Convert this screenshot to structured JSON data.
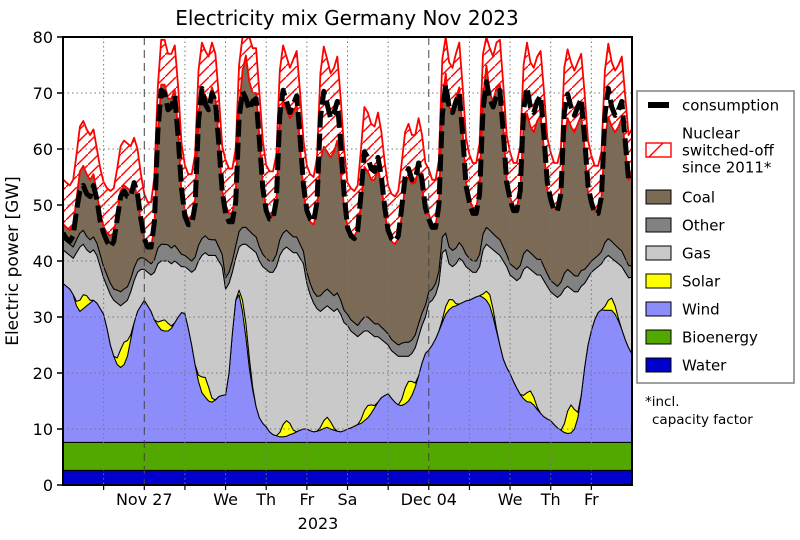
{
  "title": "Electricity mix Germany Nov 2023",
  "ylabel": "Electric power [GW]",
  "year_label": "2023",
  "footnote": {
    "line1": "*incl.",
    "line2": "capacity factor"
  },
  "axes": {
    "y_ticks": [
      0,
      10,
      20,
      30,
      40,
      50,
      60,
      70,
      80
    ],
    "x_tick_labels": [
      {
        "label": "Nov 27",
        "day": 2
      },
      {
        "label": "We",
        "day": 4
      },
      {
        "label": "Th",
        "day": 5
      },
      {
        "label": "Fr",
        "day": 6
      },
      {
        "label": "Sa",
        "day": 7
      },
      {
        "label": "Dec 04",
        "day": 9
      },
      {
        "label": "We",
        "day": 11
      },
      {
        "label": "Th",
        "day": 12
      },
      {
        "label": "Fr",
        "day": 13
      }
    ],
    "monday_days": [
      2,
      9
    ],
    "days_total": 14
  },
  "colors": {
    "coal": "#7b6a55",
    "other": "#828282",
    "gas": "#c9c9c9",
    "solar": "#ffff00",
    "wind": "#8c8cfa",
    "bioenergy": "#53a800",
    "water": "#0000cd",
    "nuclear_hatch": "#ff0000",
    "consumption": "#000000",
    "grid": "#777777",
    "monday_grid": "#444444"
  },
  "legend": {
    "items": [
      {
        "key": "consumption",
        "label": "consumption",
        "glyph": "dash"
      },
      {
        "key": "nuclear",
        "label": "Nuclear\nswitched-off\nsince 2011*",
        "glyph": "hatch"
      },
      {
        "key": "coal",
        "label": "Coal",
        "glyph": "box"
      },
      {
        "key": "other",
        "label": "Other",
        "glyph": "box"
      },
      {
        "key": "gas",
        "label": "Gas",
        "glyph": "box"
      },
      {
        "key": "solar",
        "label": "Solar",
        "glyph": "box"
      },
      {
        "key": "wind",
        "label": "Wind",
        "glyph": "box"
      },
      {
        "key": "bioenergy",
        "label": "Bioenergy",
        "glyph": "box"
      },
      {
        "key": "water",
        "label": "Water",
        "glyph": "box"
      }
    ]
  },
  "chart_data": {
    "type": "area",
    "title": "Electricity mix Germany Nov 2023",
    "ylabel": "Electric power [GW]",
    "ylim": [
      0,
      80
    ],
    "grid": true,
    "legend_position": "right",
    "start": "Nov 25 2023 00:00",
    "end": "Dec 09 2023 00:00",
    "step_hours": 2,
    "stack_order": [
      "water",
      "bioenergy",
      "wind",
      "solar",
      "gas",
      "other",
      "coal"
    ],
    "nuclear_offset_gw": 8,
    "water_constant_gw": 2.6,
    "bioenergy_constant_gw": 5.0,
    "wind": [
      28.4,
      27.9,
      27.4,
      26.4,
      24.4,
      23.4,
      23.9,
      24.4,
      24.9,
      25.4,
      24.9,
      23.9,
      22.9,
      20.4,
      17.4,
      15.4,
      13.9,
      13.4,
      13.9,
      15.4,
      18.4,
      21.4,
      23.4,
      24.4,
      25.4,
      24.4,
      23.4,
      21.9,
      20.9,
      20.1,
      19.9,
      19.9,
      20.4,
      21.4,
      22.4,
      23.2,
      23,
      20.4,
      17.4,
      13.9,
      10.9,
      8.9,
      8.1,
      7.4,
      7.2,
      7.6,
      8.2,
      8.4,
      8.5,
      12.4,
      19.4,
      25.4,
      26.4,
      23.4,
      18.8,
      13.4,
      9.4,
      6.4,
      4.4,
      3.4,
      2.8,
      1.9,
      1.4,
      1.2,
      1,
      1,
      1.1,
      1.4,
      1.6,
      1.9,
      2.2,
      2.4,
      2.4,
      2.1,
      1.9,
      2,
      2.2,
      2.5,
      2.7,
      2.4,
      2.2,
      2,
      1.9,
      2.1,
      2.4,
      2.6,
      2.9,
      3.2,
      3.4,
      3.9,
      4.4,
      5.2,
      6.2,
      7.2,
      8,
      8.4,
      8.7,
      7.9,
      7.2,
      6.7,
      6.6,
      6.9,
      7.4,
      8.4,
      9.9,
      11.9,
      14.2,
      15.9,
      16.5,
      17.4,
      18.5,
      19.9,
      21.4,
      22.9,
      23.7,
      24.2,
      24.4,
      24.7,
      25,
      25.3,
      25.4,
      25.7,
      26,
      26.2,
      25.9,
      25.4,
      24.4,
      22.4,
      19.9,
      17.4,
      14.9,
      13.4,
      12.3,
      10.9,
      9.7,
      8.6,
      7.8,
      7.3,
      7.2,
      6.7,
      5.9,
      5.2,
      4.6,
      4.2,
      3.9,
      3.2,
      2.6,
      2.2,
      1.8,
      1.6,
      1.7,
      2.4,
      4.4,
      8.4,
      13.4,
      17.4,
      20,
      21.9,
      23.2,
      23.7,
      23.6,
      23.6,
      23.6,
      22.9,
      21.7,
      20.2,
      18.4,
      16.9,
      15.8
    ],
    "solar": [
      0,
      0,
      0,
      0,
      0.8,
      2,
      2.5,
      1.8,
      0.5,
      0,
      0,
      0,
      0,
      0,
      0,
      0,
      1.2,
      3.2,
      4,
      2.8,
      0.8,
      0,
      0,
      0,
      0,
      0,
      0,
      0,
      0.6,
      1.6,
      2,
      1.4,
      0.4,
      0,
      0,
      0,
      0,
      0,
      0,
      0,
      1.1,
      2.8,
      3.5,
      2.5,
      0.7,
      0,
      0,
      0,
      0,
      0,
      0,
      0,
      0.8,
      2,
      2.5,
      1.8,
      0.5,
      0,
      0,
      0,
      0,
      0,
      0,
      0,
      0.8,
      2.2,
      2.8,
      2,
      0.6,
      0,
      0,
      0,
      0,
      0,
      0,
      0,
      0.5,
      1.4,
      1.8,
      1.3,
      0.4,
      0,
      0,
      0,
      0,
      0,
      0,
      0,
      0.7,
      1.8,
      2.2,
      1.5,
      0.4,
      0,
      0,
      0,
      0,
      0,
      0,
      0,
      1.1,
      2.8,
      3.5,
      2.5,
      0.7,
      0,
      0,
      0,
      0,
      0,
      0,
      0,
      0.5,
      1.4,
      1.8,
      1.3,
      0.4,
      0,
      0,
      0,
      0,
      0,
      0,
      0,
      0.6,
      1.6,
      2,
      1.4,
      0.4,
      0,
      0,
      0,
      0,
      0,
      0,
      0,
      0.6,
      1.6,
      2,
      1.4,
      0.4,
      0,
      0,
      0,
      0,
      0,
      0,
      0,
      1.5,
      4,
      5,
      3.5,
      1,
      0,
      0,
      0,
      0,
      0,
      0,
      0,
      0.7,
      1.8,
      2.2,
      1.5,
      0.4,
      0,
      0,
      0,
      0
    ],
    "gas": [
      6,
      6,
      6,
      6.5,
      8.7,
      9.5,
      9,
      8.2,
      8.5,
      9,
      8.5,
      7.5,
      6.5,
      7.5,
      9,
      10,
      9.8,
      7.8,
      7,
      7.2,
      7.7,
      7.5,
      7,
      6.5,
      5.5,
      6,
      6.5,
      8.5,
      10.4,
      10.7,
      10.5,
      11.1,
      11.1,
      11,
      9.5,
      8.2,
      8.4,
      10.5,
      13,
      17,
      20.4,
      21.7,
      22.3,
      23.5,
      25.5,
      25.8,
      24.2,
      23,
      18.9,
      16,
      11,
      7.5,
      7.7,
      10,
      14.1,
      19.7,
      24.5,
      27.5,
      28,
      28,
      28.1,
      28.5,
      29,
      30.2,
      31.6,
      31.2,
      31,
      31,
      31.7,
      32,
      30.7,
      29.5,
      26,
      24.3,
      23,
      21.9,
      20.7,
      20,
      19.9,
      20.2,
      20.8,
      21.9,
      21,
      19.3,
      18.5,
      17.3,
      16.5,
      15.7,
      15.3,
      14.2,
      13.3,
      12.7,
      12.3,
      11.7,
      10.4,
      9.5,
      8.7,
      8.5,
      8.7,
      8.7,
      7.7,
      5.7,
      4.5,
      5,
      6.3,
      7,
      6.7,
      6.5,
      8.4,
      8,
      7.9,
      8.5,
      12,
      10.1,
      6.4,
      5.9,
      7.1,
      8.2,
      7.4,
      6.1,
      5.5,
      4.7,
      4.4,
      5.2,
      7.9,
      8.4,
      8.5,
      10.6,
      13.6,
      16,
      17.5,
      18,
      17.6,
      18.5,
      19.2,
      20.8,
      22.5,
      22.5,
      21.7,
      22.3,
      23.6,
      24.7,
      24.3,
      23.7,
      23,
      23.2,
      23.3,
      24.2,
      24.1,
      22.3,
      20.7,
      21,
      21.5,
      19.5,
      15,
      12,
      10.4,
      9,
      8.2,
      8.2,
      8.6,
      8,
      7.1,
      8,
      9.8,
      11.2,
      12,
      12.5,
      13.7
    ],
    "other": [
      2,
      2,
      2,
      2,
      2.3,
      2.5,
      2.5,
      2.4,
      2.3,
      2.3,
      2.2,
      2.1,
      2,
      2,
      2,
      2,
      2.3,
      2.5,
      2.5,
      2.4,
      2.3,
      2.3,
      2.2,
      2.1,
      2,
      2,
      2,
      2.2,
      2.8,
      3,
      3,
      2.9,
      2.8,
      2.8,
      2.5,
      2.2,
      2,
      2,
      2,
      2.2,
      2.8,
      3,
      3,
      2.9,
      2.8,
      2.8,
      2.5,
      2.2,
      2,
      2,
      2,
      2.2,
      2.8,
      3,
      3,
      2.9,
      2.8,
      2.8,
      2.5,
      2.2,
      2,
      2,
      2,
      2.2,
      2.8,
      3,
      3,
      2.9,
      2.8,
      2.8,
      2.5,
      2.2,
      2,
      2,
      2,
      2.2,
      2.8,
      3,
      3,
      2.9,
      2.8,
      2.8,
      2.5,
      2.2,
      2,
      2,
      2,
      2,
      2.3,
      2.5,
      2.5,
      2.4,
      2.3,
      2.3,
      2.2,
      2.1,
      2,
      2,
      2,
      2,
      2.3,
      2.5,
      2.5,
      2.4,
      2.3,
      2.3,
      2.2,
      2.1,
      2,
      2,
      2,
      2.2,
      2.8,
      3,
      3,
      2.9,
      2.8,
      2.8,
      2.5,
      2.2,
      2,
      2,
      2,
      2.2,
      2.8,
      3,
      3,
      2.9,
      2.8,
      2.8,
      2.5,
      2.2,
      2,
      2,
      2,
      2.2,
      2.8,
      3,
      3,
      2.9,
      2.8,
      2.8,
      2.5,
      2.2,
      2,
      2,
      2,
      2.2,
      2.8,
      3,
      3,
      2.9,
      2.8,
      2.8,
      2.5,
      2.2,
      2,
      2,
      2,
      2.2,
      2.8,
      3,
      3,
      2.9,
      2.8,
      2.8,
      2.5,
      2.2,
      2
    ],
    "coal": [
      2.6,
      2.5,
      2.5,
      4,
      7.2,
      11,
      11.5,
      11.1,
      10.7,
      11.2,
      8.8,
      7.4,
      7.1,
      7.5,
      8.5,
      10,
      13.7,
      18,
      18.5,
      17.6,
      15.7,
      15.2,
      10.8,
      6.4,
      3.3,
      2.5,
      3,
      5.8,
      19.7,
      28.5,
      28.5,
      26.1,
      26.7,
      27.7,
      21,
      10.8,
      8.1,
      7,
      7.5,
      10.3,
      23.2,
      27,
      25,
      24.6,
      27.2,
      25.2,
      19,
      11.3,
      13,
      10.5,
      8.5,
      9.3,
      21.7,
      28,
      30.7,
      26.6,
      25.2,
      25.7,
      19.5,
      12.3,
      8.6,
      8,
      8,
      9.3,
      20.7,
      23.7,
      21.5,
      20.6,
      22.2,
      23.7,
      17.5,
      10.3,
      10.5,
      11,
      12,
      15.3,
      24.2,
      25.9,
      24.5,
      24.1,
      25.7,
      27.2,
      23,
      18.3,
      15.5,
      15.5,
      15.5,
      17,
      20.7,
      26.8,
      26,
      25.1,
      25.7,
      27.7,
      25.3,
      20.9,
      18,
      17.5,
      17.5,
      19,
      22.7,
      28,
      29.5,
      27.9,
      27.2,
      27.7,
      22.8,
      16.3,
      13.9,
      11.5,
      10.5,
      11.8,
      23.7,
      28.5,
      25,
      24.6,
      26.7,
      27.7,
      20.5,
      12.8,
      10.5,
      9.5,
      9.5,
      11.8,
      24.2,
      28.9,
      24.5,
      23.6,
      26.7,
      27.7,
      21,
      13.3,
      11.9,
      10.5,
      11,
      13.3,
      22.7,
      24.3,
      22.5,
      22.1,
      24.7,
      25.7,
      21,
      14.8,
      14.9,
      13.5,
      14,
      15.8,
      24.2,
      27,
      26,
      25.6,
      27.2,
      27.7,
      21.5,
      12.8,
      10.8,
      8.5,
      8,
      9.8,
      18.7,
      21.7,
      20.5,
      20.1,
      21.7,
      23.7,
      19.5,
      15.3,
      16.5
    ],
    "consumption": [
      45,
      44,
      43.5,
      44.5,
      49,
      52.5,
      53.5,
      52,
      51.5,
      53.5,
      51,
      47,
      45,
      43.5,
      42.5,
      43.5,
      47.5,
      51.5,
      52.5,
      51.5,
      51.5,
      54,
      52,
      47.5,
      44,
      42.5,
      42.5,
      47,
      63,
      70.5,
      70,
      67,
      67.5,
      69.5,
      62,
      53,
      48,
      46.5,
      46.5,
      50,
      65,
      70.8,
      68,
      67,
      70,
      68.5,
      61,
      52.5,
      48.5,
      47,
      47,
      50.5,
      65.5,
      70.3,
      69,
      67,
      68.5,
      69,
      61.5,
      53,
      49,
      47.5,
      47.5,
      51,
      66,
      70.5,
      68.5,
      66.5,
      68,
      69.5,
      62,
      53.5,
      49,
      47.5,
      47,
      50.5,
      65.5,
      70.3,
      68,
      65.5,
      66.5,
      68.5,
      61,
      52,
      46,
      44.5,
      44,
      45.5,
      52,
      59.5,
      58.5,
      56.5,
      56,
      58.5,
      55,
      49.5,
      45.5,
      44,
      43.5,
      44.5,
      49.5,
      55,
      56.5,
      54.5,
      54.5,
      57.5,
      54.5,
      49.5,
      47.5,
      46,
      46,
      50,
      66,
      71.5,
      67.5,
      66.5,
      68.5,
      70,
      62.5,
      53.5,
      50.5,
      48.5,
      48.5,
      52,
      67,
      72,
      69,
      67.5,
      69.5,
      70.5,
      63,
      54,
      51,
      49,
      49,
      52.5,
      67,
      71,
      67.5,
      66.5,
      68.5,
      69.5,
      62.5,
      54,
      51,
      49,
      49,
      52,
      66.5,
      69.8,
      67.5,
      66,
      67.5,
      69,
      62,
      53.5,
      50.5,
      48.5,
      48.5,
      51.5,
      66,
      70.8,
      67.5,
      66,
      67,
      68.5,
      61.5,
      54.5,
      54
    ]
  }
}
